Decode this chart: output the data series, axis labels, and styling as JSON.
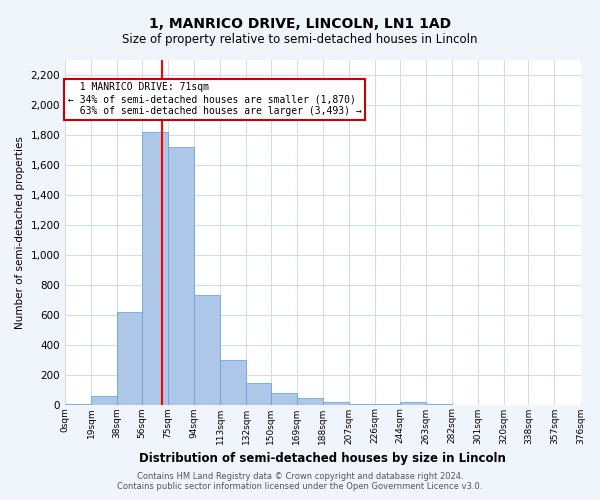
{
  "title": "1, MANRICO DRIVE, LINCOLN, LN1 1AD",
  "subtitle": "Size of property relative to semi-detached houses in Lincoln",
  "xlabel": "Distribution of semi-detached houses by size in Lincoln",
  "ylabel": "Number of semi-detached properties",
  "property_size": 71,
  "property_label": "1 MANRICO DRIVE: 71sqm",
  "pct_smaller": 34,
  "pct_larger": 63,
  "n_smaller": "1,870",
  "n_larger": "3,493",
  "bin_labels": [
    "0sqm",
    "19sqm",
    "38sqm",
    "56sqm",
    "75sqm",
    "94sqm",
    "113sqm",
    "132sqm",
    "150sqm",
    "169sqm",
    "188sqm",
    "207sqm",
    "226sqm",
    "244sqm",
    "263sqm",
    "282sqm",
    "301sqm",
    "320sqm",
    "338sqm",
    "357sqm",
    "376sqm"
  ],
  "bin_edges": [
    0,
    19,
    38,
    56,
    75,
    94,
    113,
    132,
    150,
    169,
    188,
    207,
    226,
    244,
    263,
    282,
    301,
    320,
    338,
    357,
    376
  ],
  "bar_heights": [
    5,
    60,
    620,
    1820,
    1720,
    730,
    300,
    145,
    75,
    45,
    20,
    5,
    5,
    20,
    5,
    0,
    0,
    0,
    0,
    0
  ],
  "bar_color": "#aec6e8",
  "bar_edge_color": "#5a9fd4",
  "vline_x": 71,
  "vline_color": "red",
  "annotation_box_color": "#cc0000",
  "ylim": [
    0,
    2300
  ],
  "yticks": [
    0,
    200,
    400,
    600,
    800,
    1000,
    1200,
    1400,
    1600,
    1800,
    2000,
    2200
  ],
  "footer_line1": "Contains HM Land Registry data © Crown copyright and database right 2024.",
  "footer_line2": "Contains public sector information licensed under the Open Government Licence v3.0.",
  "bg_color": "#f0f4fb",
  "plot_bg_color": "#ffffff",
  "grid_color": "#c8d4e8"
}
